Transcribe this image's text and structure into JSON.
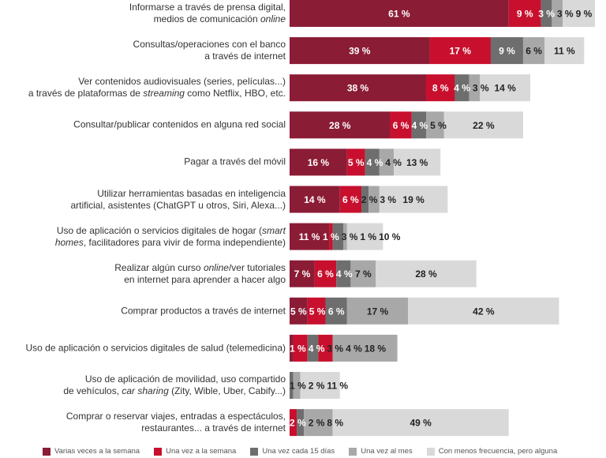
{
  "chart_data": {
    "type": "bar",
    "orientation": "horizontal",
    "stacked": true,
    "xlim": [
      0,
      85
    ],
    "grid": false,
    "legend_position": "bottom",
    "series": [
      {
        "name": "Varias veces a la semana",
        "color": "#8b1c36"
      },
      {
        "name": "Una vez a la semana",
        "color": "#c8102e"
      },
      {
        "name": "Una vez cada 15 días",
        "color": "#6e6e6e"
      },
      {
        "name": "Una vez al mes",
        "color": "#a8a8a8"
      },
      {
        "name": "Con menos frecuencia, pero alguna",
        "color": "#d9d9d9"
      }
    ],
    "categories": [
      {
        "lines": [
          [
            {
              "t": "Informarse a través de prensa digital,"
            }
          ],
          [
            {
              "t": "medios de comunicación "
            },
            {
              "t": "online",
              "i": true
            }
          ]
        ],
        "values": [
          61,
          9,
          3,
          3,
          9
        ]
      },
      {
        "lines": [
          [
            {
              "t": "Consultas/operaciones con el banco"
            }
          ],
          [
            {
              "t": "a través de internet"
            }
          ]
        ],
        "values": [
          39,
          17,
          9,
          6,
          11
        ]
      },
      {
        "lines": [
          [
            {
              "t": "Ver contenidos audiovisuales (series, películas...)"
            }
          ],
          [
            {
              "t": "a través de plataformas de "
            },
            {
              "t": "streaming",
              "i": true
            },
            {
              "t": " como Netflix, HBO, etc."
            }
          ]
        ],
        "values": [
          38,
          8,
          4,
          3,
          14
        ]
      },
      {
        "lines": [
          [
            {
              "t": "Consultar/publicar contenidos en alguna red social"
            }
          ]
        ],
        "values": [
          28,
          6,
          4,
          5,
          22
        ]
      },
      {
        "lines": [
          [
            {
              "t": "Pagar a través del móvil"
            }
          ]
        ],
        "values": [
          16,
          5,
          4,
          4,
          13
        ]
      },
      {
        "lines": [
          [
            {
              "t": "Utilizar herramientas basadas en inteligencia"
            }
          ],
          [
            {
              "t": "artificial, asistentes (ChatGPT u otros, Siri, Alexa...)"
            }
          ]
        ],
        "values": [
          14,
          6,
          2,
          3,
          19
        ]
      },
      {
        "lines": [
          [
            {
              "t": "Uso de aplicación o servicios digitales de hogar ("
            },
            {
              "t": "smart",
              "i": true
            }
          ],
          [
            {
              "t": "homes",
              "i": true
            },
            {
              "t": ", facilitadores para vivir de forma independiente)"
            }
          ]
        ],
        "values": [
          11,
          1,
          3,
          1,
          10
        ]
      },
      {
        "lines": [
          [
            {
              "t": "Realizar algún curso "
            },
            {
              "t": "online",
              "i": true
            },
            {
              "t": "/ver tutoriales"
            }
          ],
          [
            {
              "t": "en internet para aprender a hacer algo"
            }
          ]
        ],
        "values": [
          7,
          6,
          4,
          7,
          28
        ]
      },
      {
        "lines": [
          [
            {
              "t": "Comprar productos a través de internet"
            }
          ]
        ],
        "values": [
          5,
          5,
          6,
          17,
          42
        ]
      },
      {
        "lines": [
          [
            {
              "t": "Uso de aplicación o servicios digitales de salud (telemedicina)"
            }
          ]
        ],
        "values": [
          1,
          4,
          3,
          4,
          18
        ],
        "segment_colors": [
          "#8b1c36",
          "#c8102e",
          "#6e6e6e",
          "#c8102e",
          "#a8a8a8"
        ]
      },
      {
        "lines": [
          [
            {
              "t": "Uso de aplicación de movilidad, uso compartido"
            }
          ],
          [
            {
              "t": "de vehículos, "
            },
            {
              "t": "car sharing",
              "i": true
            },
            {
              "t": " (Zity, Wible, Uber, Cabify...)"
            }
          ]
        ],
        "values": [
          0,
          0,
          1,
          2,
          11
        ]
      },
      {
        "lines": [
          [
            {
              "t": "Comprar o reservar viajes, entradas a espectáculos,"
            }
          ],
          [
            {
              "t": "restaurantes... a través de internet"
            }
          ]
        ],
        "values": [
          0,
          2,
          2,
          8,
          49
        ]
      }
    ],
    "value_suffix": " %"
  }
}
